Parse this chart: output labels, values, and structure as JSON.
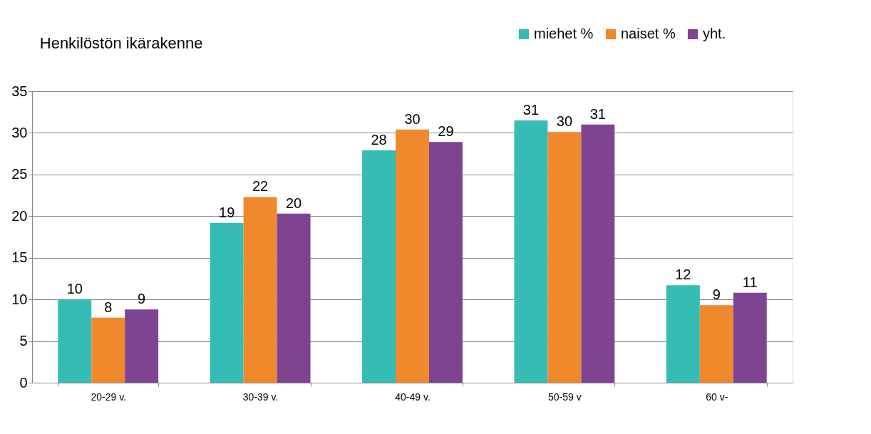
{
  "chart_data": {
    "type": "bar",
    "title": "Henkilöstön ikärakenne",
    "categories": [
      "20-29 v.",
      "30-39 v.",
      "40-49 v.",
      "50-59 v",
      "60 v-"
    ],
    "series": [
      {
        "name": "miehet %",
        "color": "#35bcb5",
        "values": [
          10.0,
          19.2,
          27.9,
          31.5,
          11.7
        ],
        "value_labels": [
          "10",
          "19",
          "28",
          "31",
          "12"
        ]
      },
      {
        "name": "naiset %",
        "color": "#f0882e",
        "values": [
          7.8,
          22.3,
          30.4,
          30.1,
          9.3
        ],
        "value_labels": [
          "8",
          "22",
          "30",
          "30",
          "9"
        ]
      },
      {
        "name": "yht.",
        "color": "#7f4491",
        "values": [
          8.8,
          20.3,
          28.9,
          31.0,
          10.8
        ],
        "value_labels": [
          "9",
          "20",
          "29",
          "31",
          "11"
        ]
      }
    ],
    "ylim": [
      0,
      35
    ],
    "yticks": [
      0,
      5,
      10,
      15,
      20,
      25,
      30,
      35
    ],
    "grid": "y",
    "legend": "top right"
  }
}
